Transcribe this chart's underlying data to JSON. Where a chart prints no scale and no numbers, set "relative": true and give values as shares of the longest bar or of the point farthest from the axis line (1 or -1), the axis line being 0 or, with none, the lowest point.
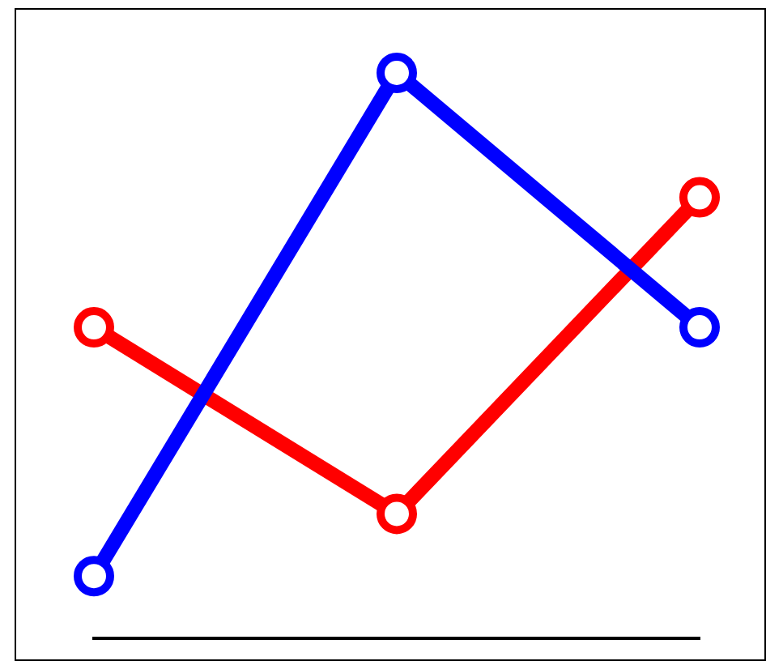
{
  "chart_data": {
    "type": "line",
    "relative": true,
    "categories": [
      null,
      null,
      null
    ],
    "marker": "circle",
    "line_style": "solid",
    "series": [
      {
        "color": "#0000ff",
        "values": [
          0.11,
          1,
          0.55
        ]
      },
      {
        "color": "#ff0000",
        "values": [
          0.55,
          0.22,
          0.78
        ]
      }
    ]
  }
}
